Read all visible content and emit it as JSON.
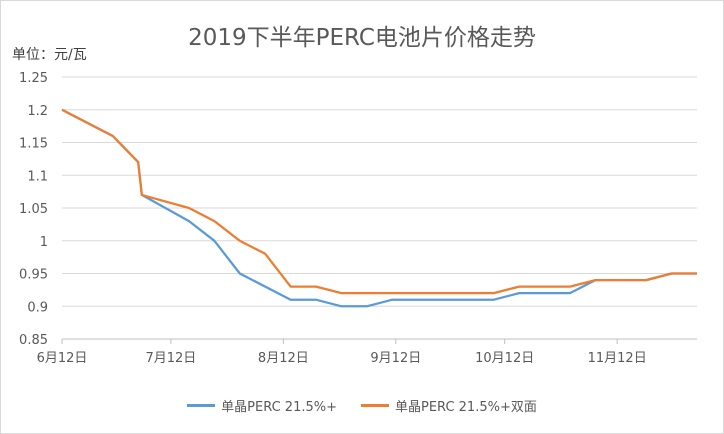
{
  "chart_data": {
    "type": "line",
    "title": "2019下半年PERC电池片价格走势",
    "ylabel": "单位：元/瓦",
    "xlabel": "",
    "ylim": [
      0.85,
      1.25
    ],
    "yticks": [
      "0.85",
      "0.9",
      "0.95",
      "1",
      "1.05",
      "1.1",
      "1.15",
      "1.2",
      "1.25"
    ],
    "xlim": [
      "2019-06-12",
      "2019-12-04"
    ],
    "xticks": [
      {
        "date": "2019-06-12",
        "label": "6月12日"
      },
      {
        "date": "2019-07-12",
        "label": "7月12日"
      },
      {
        "date": "2019-08-12",
        "label": "8月12日"
      },
      {
        "date": "2019-09-12",
        "label": "9月12日"
      },
      {
        "date": "2019-10-12",
        "label": "10月12日"
      },
      {
        "date": "2019-11-12",
        "label": "11月12日"
      }
    ],
    "grid": true,
    "legend": "bottom",
    "series": [
      {
        "name": "单晶PERC 21.5%+",
        "color": "#5b9bd5",
        "points": [
          [
            "2019-06-12",
            1.2
          ],
          [
            "2019-06-26",
            1.16
          ],
          [
            "2019-07-03",
            1.12
          ],
          [
            "2019-07-04",
            1.07
          ],
          [
            "2019-07-17",
            1.03
          ],
          [
            "2019-07-24",
            1.0
          ],
          [
            "2019-07-31",
            0.95
          ],
          [
            "2019-08-14",
            0.91
          ],
          [
            "2019-08-21",
            0.91
          ],
          [
            "2019-08-28",
            0.9
          ],
          [
            "2019-09-04",
            0.9
          ],
          [
            "2019-09-11",
            0.91
          ],
          [
            "2019-10-09",
            0.91
          ],
          [
            "2019-10-16",
            0.92
          ],
          [
            "2019-10-30",
            0.92
          ],
          [
            "2019-11-06",
            0.94
          ],
          [
            "2019-11-20",
            0.94
          ],
          [
            "2019-11-27",
            0.95
          ],
          [
            "2019-12-04",
            0.95
          ]
        ]
      },
      {
        "name": "单晶PERC 21.5%+双面",
        "color": "#ed7d31",
        "points": [
          [
            "2019-06-12",
            1.2
          ],
          [
            "2019-06-26",
            1.16
          ],
          [
            "2019-07-03",
            1.12
          ],
          [
            "2019-07-04",
            1.07
          ],
          [
            "2019-07-17",
            1.05
          ],
          [
            "2019-07-24",
            1.03
          ],
          [
            "2019-07-31",
            1.0
          ],
          [
            "2019-08-07",
            0.98
          ],
          [
            "2019-08-14",
            0.93
          ],
          [
            "2019-08-21",
            0.93
          ],
          [
            "2019-08-28",
            0.92
          ],
          [
            "2019-10-09",
            0.92
          ],
          [
            "2019-10-16",
            0.93
          ],
          [
            "2019-10-30",
            0.93
          ],
          [
            "2019-11-06",
            0.94
          ],
          [
            "2019-11-20",
            0.94
          ],
          [
            "2019-11-27",
            0.95
          ],
          [
            "2019-12-04",
            0.95
          ]
        ]
      }
    ]
  }
}
